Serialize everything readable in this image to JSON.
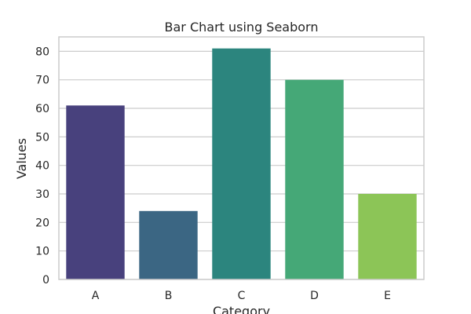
{
  "chart_data": {
    "type": "bar",
    "title": "Bar Chart using Seaborn",
    "xlabel": "Category",
    "ylabel": "Values",
    "categories": [
      "A",
      "B",
      "C",
      "D",
      "E"
    ],
    "values": [
      61,
      24,
      81,
      70,
      30
    ],
    "ylim": [
      0,
      85.05
    ],
    "yticks": [
      0,
      10,
      20,
      30,
      40,
      50,
      60,
      70,
      80
    ],
    "colors": [
      "#48417d",
      "#3b6683",
      "#2c857e",
      "#45a877",
      "#8cc557"
    ],
    "grid": true,
    "grid_color": "#cccccc",
    "spine_color": "#cccccc",
    "background": "#ffffff",
    "legend": "none"
  }
}
